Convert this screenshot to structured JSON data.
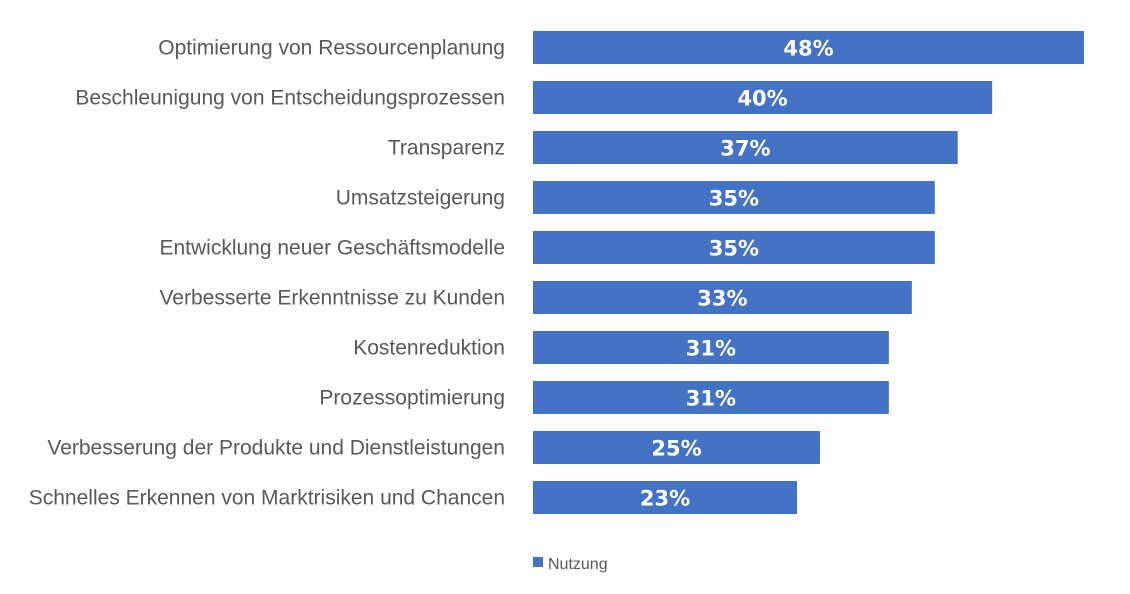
{
  "chart_data": {
    "type": "bar",
    "orientation": "horizontal",
    "categories": [
      "Optimierung von Ressourcenplanung",
      "Beschleunigung von Entscheidungsprozessen",
      "Transparenz",
      "Umsatzsteigerung",
      "Entwicklung neuer Geschäftsmodelle",
      "Verbesserte Erkenntnisse zu Kunden",
      "Kostenreduktion",
      "Prozessoptimierung",
      "Verbesserung der Produkte und Dienstleistungen",
      "Schnelles Erkennen von Marktrisiken und Chancen"
    ],
    "series": [
      {
        "name": "Nutzung",
        "values": [
          48,
          40,
          37,
          35,
          35,
          33,
          31,
          31,
          25,
          23
        ],
        "color": "#4472C4"
      }
    ],
    "value_labels": [
      "48%",
      "40%",
      "37%",
      "35%",
      "35%",
      "33%",
      "31%",
      "31%",
      "25%",
      "23%"
    ],
    "xlim": [
      0,
      48
    ],
    "grid": false,
    "legend": "bottom"
  }
}
